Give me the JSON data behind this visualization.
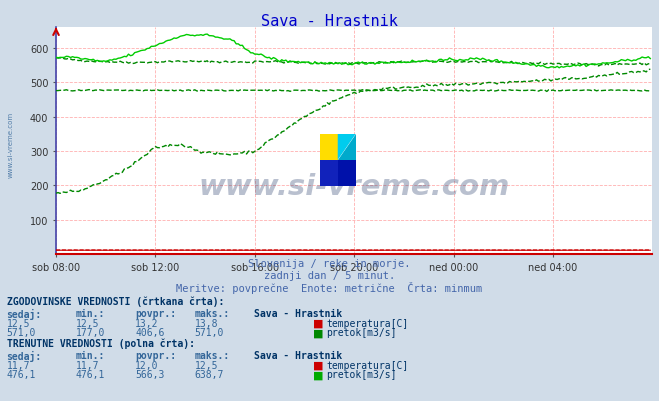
{
  "title": "Sava - Hrastnik",
  "title_color": "#0000cc",
  "bg_color": "#d0dce8",
  "plot_bg_color": "#ffffff",
  "grid_color_h": "#ffb0b0",
  "grid_color_v": "#ffb0b0",
  "subtitle_lines": [
    "Slovenija / reke in morje.",
    "zadnji dan / 5 minut.",
    "Meritve: povprečne  Enote: metrične  Črta: minmum"
  ],
  "xlabel_ticks": [
    "sob 08:00",
    "sob 12:00",
    "sob 16:00",
    "sob 20:00",
    "ned 00:00",
    "ned 04:00"
  ],
  "ylim": [
    0,
    660
  ],
  "xlim": [
    0,
    288
  ],
  "watermark": "www.si-vreme.com",
  "watermark_color": "#1a3060",
  "watermark_alpha": 0.3,
  "sidebar_text": "www.si-vreme.com",
  "sidebar_color": "#336699",
  "table_text_color": "#336699",
  "table_bold_color": "#003366",
  "red_color": "#cc0000",
  "green_dark": "#008800",
  "green_bright": "#00cc00",
  "hist_section_label": "ZGODOVINSKE VREDNOSTI (črtkana črta):",
  "curr_section_label": "TRENUTNE VREDNOSTI (polna črta):",
  "col_headers": [
    "sedaj:",
    "min.:",
    "povpr.:",
    "maks.:",
    "Sava - Hrastnik"
  ],
  "hist_temp": {
    "sedaj": "12,5",
    "min": "12,5",
    "povpr": "13,2",
    "maks": "13,8",
    "label": "temperatura[C]"
  },
  "hist_flow": {
    "sedaj": "571,0",
    "min": "177,0",
    "povpr": "406,6",
    "maks": "571,0",
    "label": "pretok[m3/s]"
  },
  "curr_temp": {
    "sedaj": "11,7",
    "min": "11,7",
    "povpr": "12,0",
    "maks": "12,5",
    "label": "temperatura[C]"
  },
  "curr_flow": {
    "sedaj": "476,1",
    "min": "476,1",
    "povpr": "566,3",
    "maks": "638,7",
    "label": "pretok[m3/s]"
  }
}
